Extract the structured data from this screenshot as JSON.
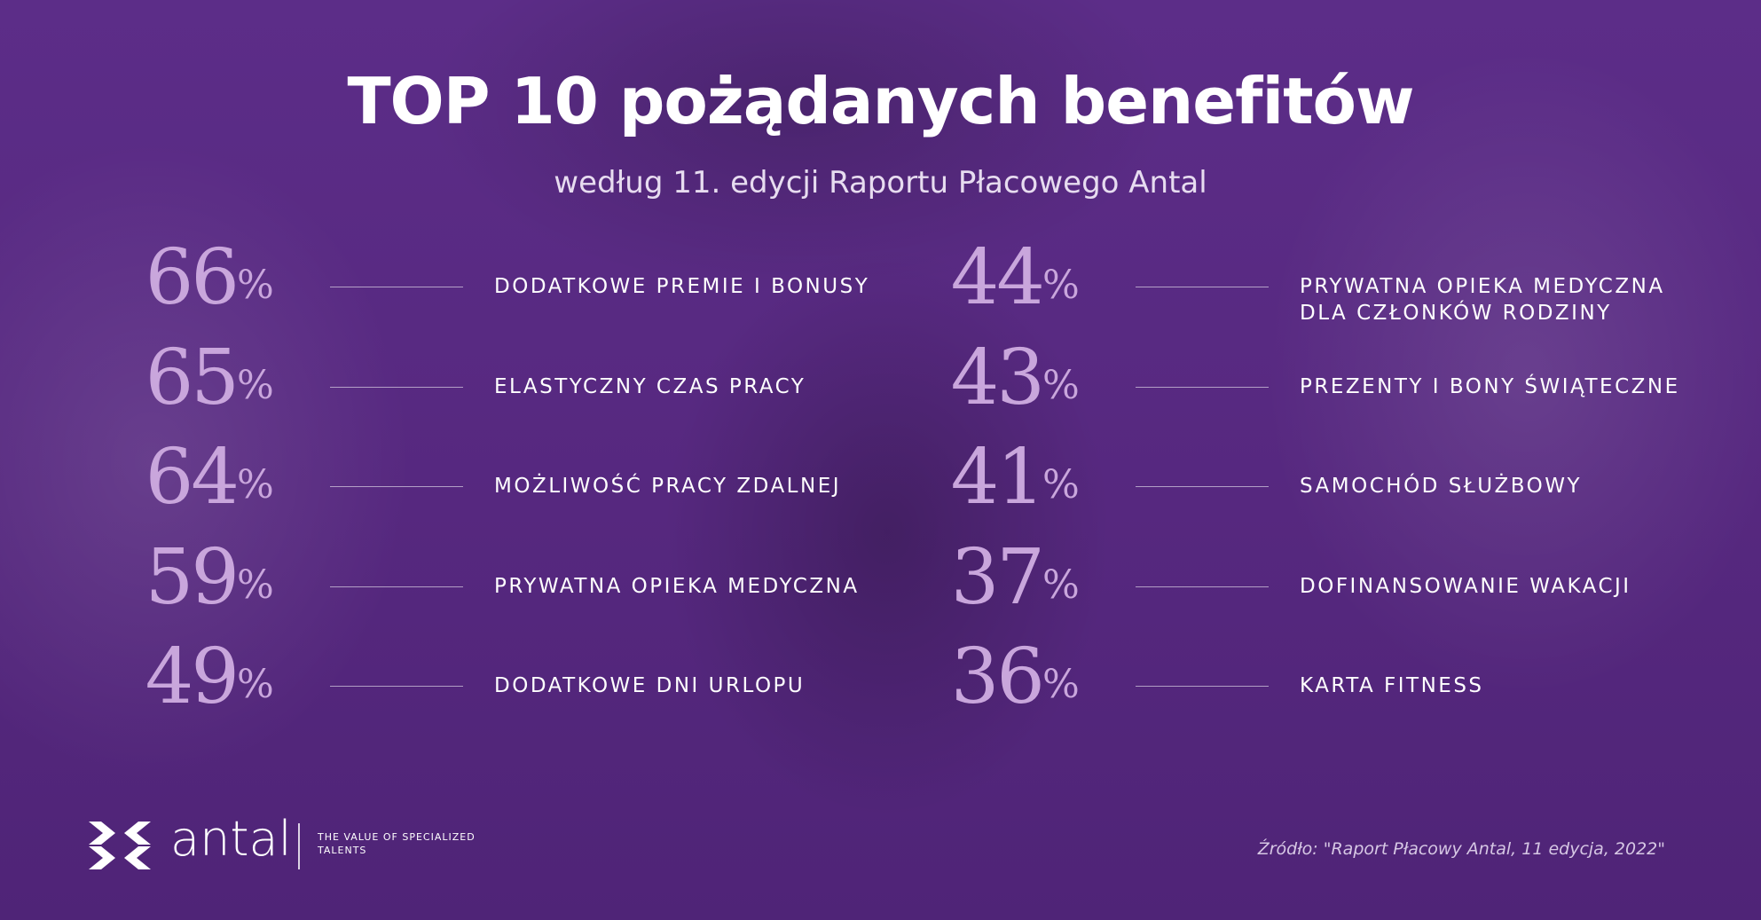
{
  "chart_data": {
    "type": "table",
    "title": "TOP 10 pożądanych benefitów",
    "subtitle": "według 11. edycji Raportu Płacowego Antal",
    "unit": "%",
    "items": [
      {
        "value": 66,
        "label": "DODATKOWE PREMIE I BONUSY"
      },
      {
        "value": 65,
        "label": "ELASTYCZNY CZAS PRACY"
      },
      {
        "value": 64,
        "label": "MOŻLIWOŚĆ PRACY ZDALNEJ"
      },
      {
        "value": 59,
        "label": "PRYWATNA OPIEKA MEDYCZNA"
      },
      {
        "value": 49,
        "label": "DODATKOWE DNI URLOPU"
      },
      {
        "value": 44,
        "label": "PRYWATNA OPIEKA MEDYCZNA DLA CZŁONKÓW RODZINY"
      },
      {
        "value": 43,
        "label": "PREZENTY I BONY ŚWIĄTECZNE"
      },
      {
        "value": 41,
        "label": "SAMOCHÓD SŁUŻBOWY"
      },
      {
        "value": 37,
        "label": "DOFINANSOWANIE WAKACJI"
      },
      {
        "value": 36,
        "label": "KARTA FITNESS"
      }
    ]
  },
  "brand": {
    "name": "antal",
    "tagline": "THE VALUE OF SPECIALIZED TALENTS",
    "logo_icon": "antal-chevron-mark-icon"
  },
  "source": "Źródło: \"Raport Płacowy Antal, 11 edycja, 2022\"",
  "colors": {
    "background": "#5a2a84",
    "number": "#c9a6dc",
    "text": "#ffffff"
  }
}
